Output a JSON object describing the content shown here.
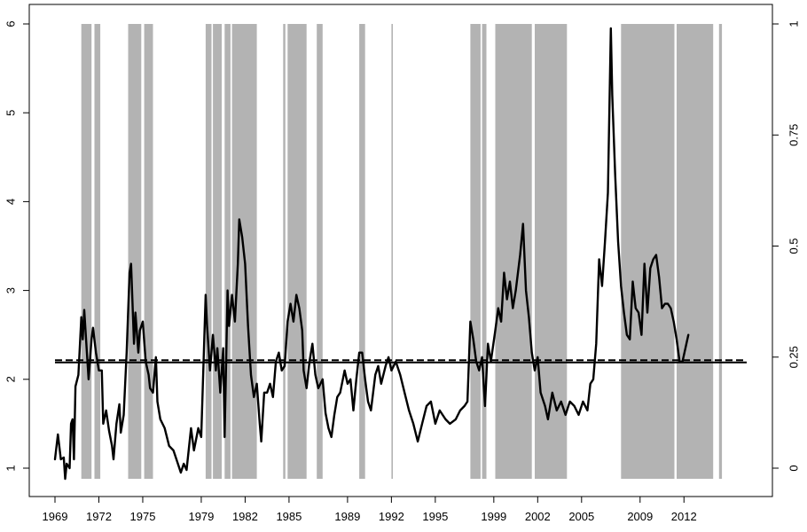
{
  "chart_data": {
    "type": "line",
    "title": "",
    "xlabel": "",
    "ylabel": "",
    "xlim": [
      1969,
      2014.6
    ],
    "ylim_left": [
      0.85,
      6.05
    ],
    "ylim_right": [
      -0.02,
      1.0
    ],
    "x_ticks": [
      1969,
      1972,
      1975,
      1979,
      1982,
      1985,
      1989,
      1992,
      1995,
      1999,
      2002,
      2005,
      2009,
      2012
    ],
    "x_tick_labels": [
      "1969",
      "1972",
      "1975",
      "1979",
      "1982",
      "1985",
      "1989",
      "1992",
      "1995",
      "1999",
      "2002",
      "2005",
      "2009",
      "2012"
    ],
    "y_left_ticks": [
      1,
      2,
      3,
      4,
      5,
      6
    ],
    "y_left_tick_labels": [
      "1",
      "2",
      "3",
      "4",
      "5",
      "6"
    ],
    "y_right_ticks": [
      0,
      0.25,
      0.5,
      0.75,
      1
    ],
    "y_right_tick_labels": [
      "0",
      "0.25",
      "0.5",
      "0.75",
      "1"
    ],
    "shaded_regions": [
      [
        1970.8,
        1971.5
      ],
      [
        1971.7,
        1972.1
      ],
      [
        1974.0,
        1974.9
      ],
      [
        1975.1,
        1975.7
      ],
      [
        1979.3,
        1979.7
      ],
      [
        1979.8,
        1980.4
      ],
      [
        1980.6,
        1981.0
      ],
      [
        1981.1,
        1982.8
      ],
      [
        1984.6,
        1984.75
      ],
      [
        1984.9,
        1986.2
      ],
      [
        1986.9,
        1987.3
      ],
      [
        1989.8,
        1990.2
      ],
      [
        1992.0,
        1992.1
      ],
      [
        1997.4,
        1998.1
      ],
      [
        1998.2,
        1998.5
      ],
      [
        1999.1,
        2001.6
      ],
      [
        2001.8,
        2004.0
      ],
      [
        2007.7,
        2011.35
      ],
      [
        2011.5,
        2014.0
      ],
      [
        2014.4,
        2014.6
      ]
    ],
    "series": [
      {
        "color": "#000000",
        "values": [
          [
            1969.0,
            1.1
          ],
          [
            1969.2,
            1.38
          ],
          [
            1969.4,
            1.1
          ],
          [
            1969.6,
            1.12
          ],
          [
            1969.7,
            0.88
          ],
          [
            1969.8,
            1.05
          ],
          [
            1970.0,
            1.0
          ],
          [
            1970.1,
            1.5
          ],
          [
            1970.2,
            1.55
          ],
          [
            1970.3,
            1.1
          ],
          [
            1970.4,
            1.92
          ],
          [
            1970.6,
            2.05
          ],
          [
            1970.8,
            2.7
          ],
          [
            1970.9,
            2.45
          ],
          [
            1971.0,
            2.78
          ],
          [
            1971.2,
            2.25
          ],
          [
            1971.3,
            2.0
          ],
          [
            1971.5,
            2.45
          ],
          [
            1971.6,
            2.58
          ],
          [
            1971.8,
            2.3
          ],
          [
            1972.0,
            2.1
          ],
          [
            1972.2,
            2.1
          ],
          [
            1972.3,
            1.5
          ],
          [
            1972.5,
            1.65
          ],
          [
            1972.7,
            1.42
          ],
          [
            1972.9,
            1.25
          ],
          [
            1973.0,
            1.1
          ],
          [
            1973.2,
            1.5
          ],
          [
            1973.4,
            1.72
          ],
          [
            1973.5,
            1.4
          ],
          [
            1973.7,
            1.6
          ],
          [
            1973.9,
            2.3
          ],
          [
            1974.1,
            3.2
          ],
          [
            1974.2,
            3.3
          ],
          [
            1974.4,
            2.4
          ],
          [
            1974.5,
            2.75
          ],
          [
            1974.7,
            2.3
          ],
          [
            1974.8,
            2.55
          ],
          [
            1975.0,
            2.65
          ],
          [
            1975.2,
            2.2
          ],
          [
            1975.4,
            2.05
          ],
          [
            1975.5,
            1.9
          ],
          [
            1975.7,
            1.85
          ],
          [
            1975.9,
            2.25
          ],
          [
            1976.0,
            1.75
          ],
          [
            1976.2,
            1.55
          ],
          [
            1976.5,
            1.45
          ],
          [
            1976.8,
            1.25
          ],
          [
            1977.1,
            1.2
          ],
          [
            1977.4,
            1.05
          ],
          [
            1977.6,
            0.95
          ],
          [
            1977.8,
            1.05
          ],
          [
            1978.0,
            0.98
          ],
          [
            1978.3,
            1.45
          ],
          [
            1978.5,
            1.2
          ],
          [
            1978.8,
            1.45
          ],
          [
            1979.0,
            1.35
          ],
          [
            1979.3,
            2.95
          ],
          [
            1979.4,
            2.6
          ],
          [
            1979.6,
            2.1
          ],
          [
            1979.8,
            2.5
          ],
          [
            1980.0,
            2.1
          ],
          [
            1980.1,
            2.35
          ],
          [
            1980.3,
            1.85
          ],
          [
            1980.5,
            2.35
          ],
          [
            1980.6,
            1.35
          ],
          [
            1980.8,
            3.0
          ],
          [
            1980.9,
            2.6
          ],
          [
            1981.1,
            2.95
          ],
          [
            1981.3,
            2.65
          ],
          [
            1981.5,
            3.3
          ],
          [
            1981.6,
            3.8
          ],
          [
            1981.8,
            3.6
          ],
          [
            1982.0,
            3.3
          ],
          [
            1982.2,
            2.6
          ],
          [
            1982.4,
            2.05
          ],
          [
            1982.6,
            1.8
          ],
          [
            1982.8,
            1.95
          ],
          [
            1983.0,
            1.5
          ],
          [
            1983.1,
            1.3
          ],
          [
            1983.3,
            1.85
          ],
          [
            1983.5,
            1.85
          ],
          [
            1983.7,
            1.95
          ],
          [
            1983.9,
            1.8
          ],
          [
            1984.1,
            2.2
          ],
          [
            1984.3,
            2.3
          ],
          [
            1984.5,
            2.1
          ],
          [
            1984.7,
            2.15
          ],
          [
            1984.9,
            2.65
          ],
          [
            1985.1,
            2.85
          ],
          [
            1985.3,
            2.65
          ],
          [
            1985.5,
            2.95
          ],
          [
            1985.7,
            2.8
          ],
          [
            1985.9,
            2.55
          ],
          [
            1986.0,
            2.1
          ],
          [
            1986.2,
            1.9
          ],
          [
            1986.4,
            2.2
          ],
          [
            1986.6,
            2.4
          ],
          [
            1986.8,
            2.05
          ],
          [
            1987.0,
            1.9
          ],
          [
            1987.3,
            2.0
          ],
          [
            1987.5,
            1.62
          ],
          [
            1987.7,
            1.45
          ],
          [
            1987.9,
            1.35
          ],
          [
            1988.1,
            1.6
          ],
          [
            1988.3,
            1.8
          ],
          [
            1988.5,
            1.85
          ],
          [
            1988.8,
            2.1
          ],
          [
            1989.0,
            1.95
          ],
          [
            1989.2,
            2.0
          ],
          [
            1989.4,
            1.65
          ],
          [
            1989.6,
            2.0
          ],
          [
            1989.8,
            2.3
          ],
          [
            1990.0,
            2.3
          ],
          [
            1990.2,
            2.0
          ],
          [
            1990.4,
            1.75
          ],
          [
            1990.6,
            1.65
          ],
          [
            1990.9,
            2.05
          ],
          [
            1991.1,
            2.15
          ],
          [
            1991.3,
            1.95
          ],
          [
            1991.6,
            2.15
          ],
          [
            1991.8,
            2.25
          ],
          [
            1992.0,
            2.1
          ],
          [
            1992.3,
            2.2
          ],
          [
            1992.6,
            2.05
          ],
          [
            1992.9,
            1.85
          ],
          [
            1993.2,
            1.65
          ],
          [
            1993.5,
            1.5
          ],
          [
            1993.8,
            1.3
          ],
          [
            1994.1,
            1.5
          ],
          [
            1994.4,
            1.7
          ],
          [
            1994.7,
            1.75
          ],
          [
            1995.0,
            1.5
          ],
          [
            1995.3,
            1.65
          ],
          [
            1995.7,
            1.55
          ],
          [
            1996.0,
            1.5
          ],
          [
            1996.4,
            1.55
          ],
          [
            1996.7,
            1.65
          ],
          [
            1997.0,
            1.7
          ],
          [
            1997.2,
            1.75
          ],
          [
            1997.4,
            2.65
          ],
          [
            1997.6,
            2.45
          ],
          [
            1997.8,
            2.2
          ],
          [
            1998.0,
            2.1
          ],
          [
            1998.2,
            2.25
          ],
          [
            1998.4,
            1.7
          ],
          [
            1998.6,
            2.4
          ],
          [
            1998.8,
            2.2
          ],
          [
            1999.1,
            2.55
          ],
          [
            1999.3,
            2.8
          ],
          [
            1999.5,
            2.65
          ],
          [
            1999.7,
            3.2
          ],
          [
            1999.9,
            2.9
          ],
          [
            2000.1,
            3.1
          ],
          [
            2000.3,
            2.8
          ],
          [
            2000.5,
            3.0
          ],
          [
            2000.8,
            3.4
          ],
          [
            2001.0,
            3.75
          ],
          [
            2001.2,
            3.0
          ],
          [
            2001.4,
            2.7
          ],
          [
            2001.6,
            2.3
          ],
          [
            2001.8,
            2.1
          ],
          [
            2002.0,
            2.25
          ],
          [
            2002.2,
            1.85
          ],
          [
            2002.5,
            1.7
          ],
          [
            2002.7,
            1.55
          ],
          [
            2003.0,
            1.85
          ],
          [
            2003.3,
            1.65
          ],
          [
            2003.6,
            1.75
          ],
          [
            2003.9,
            1.6
          ],
          [
            2004.2,
            1.75
          ],
          [
            2004.5,
            1.7
          ],
          [
            2004.8,
            1.6
          ],
          [
            2005.1,
            1.75
          ],
          [
            2005.4,
            1.65
          ],
          [
            2005.6,
            1.95
          ],
          [
            2005.8,
            2.0
          ],
          [
            2006.0,
            2.4
          ],
          [
            2006.2,
            3.35
          ],
          [
            2006.4,
            3.05
          ],
          [
            2006.6,
            3.55
          ],
          [
            2006.8,
            4.1
          ],
          [
            2007.0,
            5.95
          ],
          [
            2007.1,
            5.2
          ],
          [
            2007.3,
            4.3
          ],
          [
            2007.5,
            3.55
          ],
          [
            2007.7,
            3.05
          ],
          [
            2007.9,
            2.75
          ],
          [
            2008.1,
            2.5
          ],
          [
            2008.3,
            2.45
          ],
          [
            2008.5,
            3.1
          ],
          [
            2008.7,
            2.8
          ],
          [
            2008.9,
            2.75
          ],
          [
            2009.1,
            2.5
          ],
          [
            2009.3,
            3.3
          ],
          [
            2009.5,
            2.75
          ],
          [
            2009.7,
            3.25
          ],
          [
            2009.9,
            3.35
          ],
          [
            2010.1,
            3.4
          ],
          [
            2010.3,
            3.15
          ],
          [
            2010.5,
            2.8
          ],
          [
            2010.7,
            2.85
          ],
          [
            2010.9,
            2.85
          ],
          [
            2011.1,
            2.8
          ],
          [
            2011.3,
            2.65
          ],
          [
            2011.5,
            2.45
          ],
          [
            2011.7,
            2.2
          ],
          [
            2011.9,
            2.2
          ],
          [
            2012.1,
            2.35
          ],
          [
            2012.3,
            2.5
          ]
        ]
      }
    ],
    "reference_lines": [
      {
        "y": 2.19,
        "style": "solid"
      },
      {
        "y": 2.215,
        "style": "dashed"
      }
    ],
    "shade_color": "#b3b3b3",
    "line_color": "#000000"
  }
}
